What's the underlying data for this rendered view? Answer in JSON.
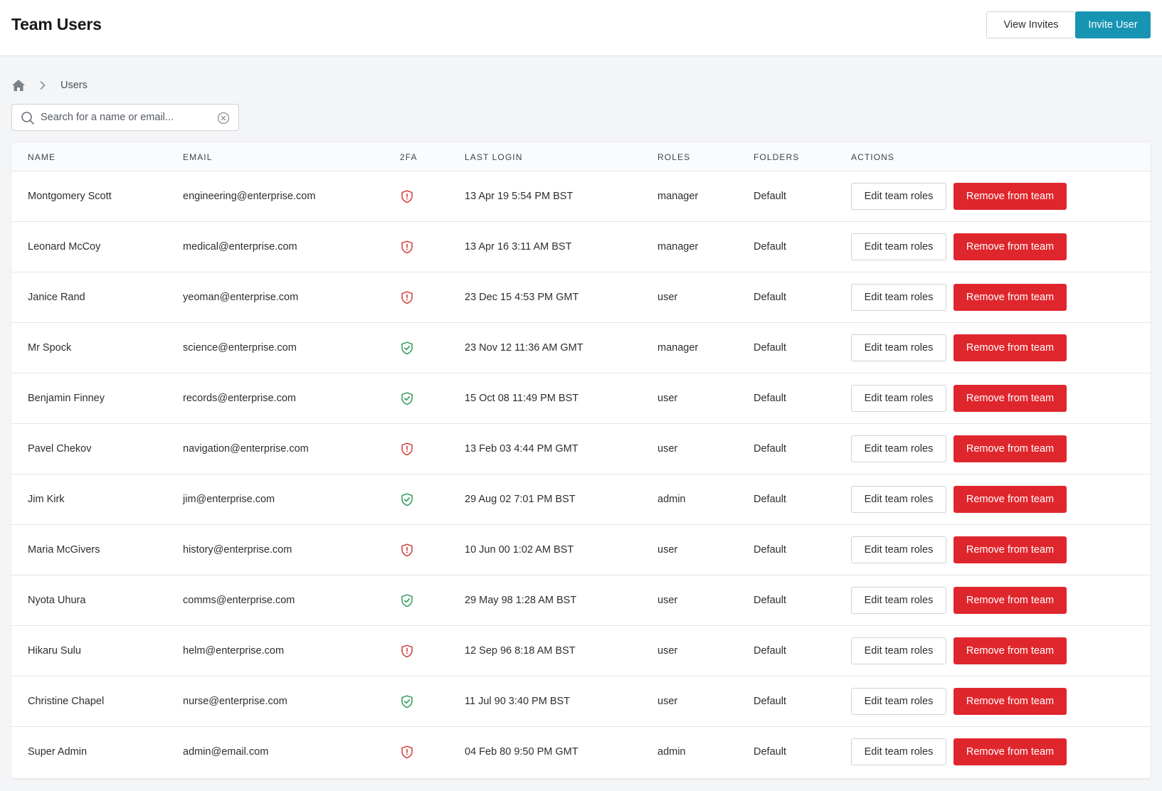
{
  "header": {
    "title": "Team Users",
    "view_invites_label": "View Invites",
    "invite_user_label": "Invite User"
  },
  "breadcrumb": {
    "home_icon": "home-icon",
    "separator_icon": "chevron-right-icon",
    "current": "Users"
  },
  "search": {
    "placeholder": "Search for a name or email...",
    "value": ""
  },
  "table": {
    "columns": [
      "NAME",
      "EMAIL",
      "2FA",
      "LAST LOGIN",
      "ROLES",
      "FOLDERS",
      "ACTIONS"
    ],
    "action_labels": {
      "edit": "Edit team roles",
      "remove": "Remove from team"
    },
    "rows": [
      {
        "name": "Montgomery Scott",
        "email": "engineering@enterprise.com",
        "twofa": false,
        "last_login": "13 Apr 19 5:54 PM BST",
        "role": "manager",
        "folder": "Default"
      },
      {
        "name": "Leonard McCoy",
        "email": "medical@enterprise.com",
        "twofa": false,
        "last_login": "13 Apr 16 3:11 AM BST",
        "role": "manager",
        "folder": "Default"
      },
      {
        "name": "Janice Rand",
        "email": "yeoman@enterprise.com",
        "twofa": false,
        "last_login": "23 Dec 15 4:53 PM GMT",
        "role": "user",
        "folder": "Default"
      },
      {
        "name": "Mr Spock",
        "email": "science@enterprise.com",
        "twofa": true,
        "last_login": "23 Nov 12 11:36 AM GMT",
        "role": "manager",
        "folder": "Default"
      },
      {
        "name": "Benjamin Finney",
        "email": "records@enterprise.com",
        "twofa": true,
        "last_login": "15 Oct 08 11:49 PM BST",
        "role": "user",
        "folder": "Default"
      },
      {
        "name": "Pavel Chekov",
        "email": "navigation@enterprise.com",
        "twofa": false,
        "last_login": "13 Feb 03 4:44 PM GMT",
        "role": "user",
        "folder": "Default"
      },
      {
        "name": "Jim Kirk",
        "email": "jim@enterprise.com",
        "twofa": true,
        "last_login": "29 Aug 02 7:01 PM BST",
        "role": "admin",
        "folder": "Default"
      },
      {
        "name": "Maria McGivers",
        "email": "history@enterprise.com",
        "twofa": false,
        "last_login": "10 Jun 00 1:02 AM BST",
        "role": "user",
        "folder": "Default"
      },
      {
        "name": "Nyota Uhura",
        "email": "comms@enterprise.com",
        "twofa": true,
        "last_login": "29 May 98 1:28 AM BST",
        "role": "user",
        "folder": "Default"
      },
      {
        "name": "Hikaru Sulu",
        "email": "helm@enterprise.com",
        "twofa": false,
        "last_login": "12 Sep 96 8:18 AM BST",
        "role": "user",
        "folder": "Default"
      },
      {
        "name": "Christine Chapel",
        "email": "nurse@enterprise.com",
        "twofa": true,
        "last_login": "11 Jul 90 3:40 PM BST",
        "role": "user",
        "folder": "Default"
      },
      {
        "name": "Super Admin",
        "email": "admin@email.com",
        "twofa": false,
        "last_login": "04 Feb 80 9:50 PM GMT",
        "role": "admin",
        "folder": "Default"
      }
    ]
  },
  "colors": {
    "primary": "#1894b3",
    "danger": "#e0262d",
    "twofa_enabled": "#2e9a5b",
    "twofa_disabled": "#d33a3a"
  }
}
